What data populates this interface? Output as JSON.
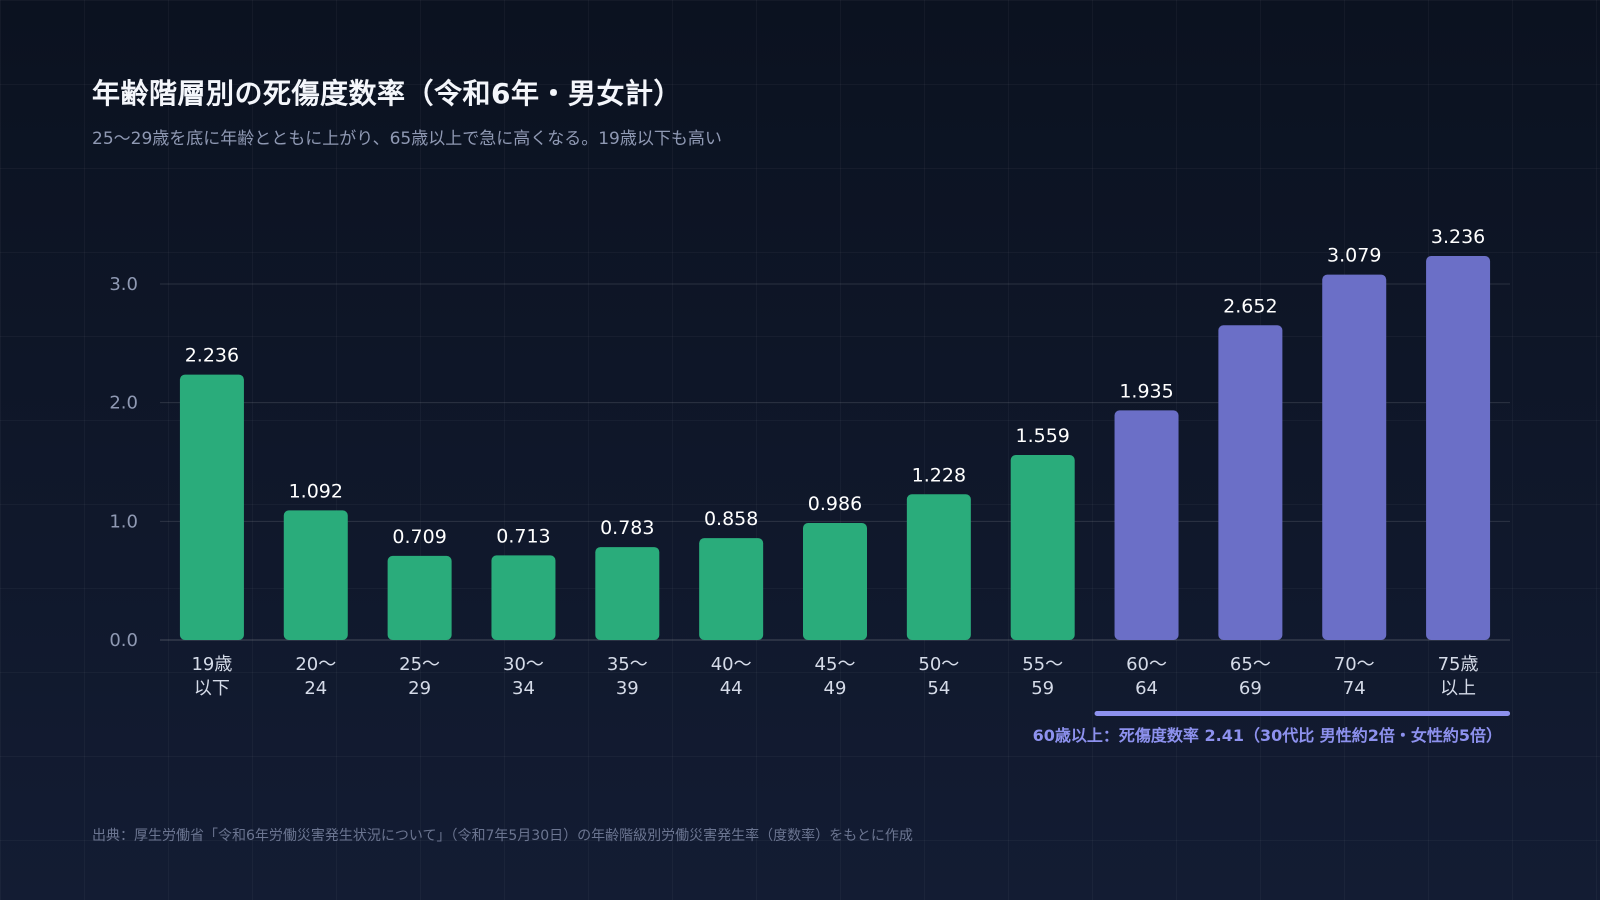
{
  "title": "年齢階層別の死傷度数率（令和6年・男女計）",
  "subtitle": "25〜29歳を底に年齢とともに上がり、65歳以上で急に高くなる。19歳以下も高い",
  "source": "出典：厚生労働省「令和6年労働災害発生状況について」（令和7年5月30日）の年齢階級別労働災害発生率（度数率）をもとに作成",
  "colors": {
    "young_bar": "#2aac7b",
    "senior_bar": "#6b6fc7",
    "annotation": "#8d91ee"
  },
  "chart_data": {
    "type": "bar",
    "categories": [
      [
        "19歳",
        "以下"
      ],
      [
        "20〜",
        "24"
      ],
      [
        "25〜",
        "29"
      ],
      [
        "30〜",
        "34"
      ],
      [
        "35〜",
        "39"
      ],
      [
        "40〜",
        "44"
      ],
      [
        "45〜",
        "49"
      ],
      [
        "50〜",
        "54"
      ],
      [
        "55〜",
        "59"
      ],
      [
        "60〜",
        "64"
      ],
      [
        "65〜",
        "69"
      ],
      [
        "70〜",
        "74"
      ],
      [
        "75歳",
        "以上"
      ]
    ],
    "values": [
      2.236,
      1.092,
      0.709,
      0.713,
      0.783,
      0.858,
      0.986,
      1.228,
      1.559,
      1.935,
      2.652,
      3.079,
      3.236
    ],
    "value_labels": [
      "2.236",
      "1.092",
      "0.709",
      "0.713",
      "0.783",
      "0.858",
      "0.986",
      "1.228",
      "1.559",
      "1.935",
      "2.652",
      "3.079",
      "3.236"
    ],
    "highlight_from_index": 9,
    "yticks": [
      {
        "value": 0,
        "label": "0.0"
      },
      {
        "value": 1,
        "label": "1.0"
      },
      {
        "value": 2,
        "label": "2.0"
      },
      {
        "value": 3,
        "label": "3.0"
      }
    ],
    "ylim": [
      0,
      3.0
    ],
    "grid": true,
    "annotation": {
      "text": "60歳以上：死傷度数率 2.41（30代比 男性約2倍・女性約5倍）",
      "from_index": 9,
      "to_index": 12
    }
  }
}
